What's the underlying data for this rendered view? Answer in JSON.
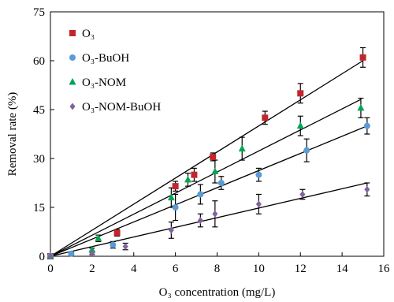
{
  "chart_data": {
    "type": "scatter",
    "title": "",
    "xlabel": "O₃ concentration (mg/L)",
    "ylabel": "Removal rate (%)",
    "xlim": [
      0,
      16
    ],
    "ylim": [
      0,
      75
    ],
    "x_ticks": [
      0,
      2,
      4,
      6,
      8,
      10,
      12,
      14,
      16
    ],
    "y_ticks": [
      0,
      15,
      30,
      45,
      60,
      75
    ],
    "x_tick_labels": [
      "0",
      "2",
      "4",
      "6",
      "8",
      "10",
      "12",
      "14",
      "16"
    ],
    "y_tick_labels": [
      "0",
      "15",
      "30",
      "45",
      "60",
      "75"
    ],
    "grid": false,
    "legend_position": "top-left",
    "trendlines": "linear fit through origin for each series",
    "series": [
      {
        "name": "O₃",
        "marker": "square",
        "color": "#c0272d",
        "points": [
          {
            "x": 0.0,
            "y": 0.0,
            "err": 0
          },
          {
            "x": 3.2,
            "y": 7.2,
            "err": 1.0
          },
          {
            "x": 6.0,
            "y": 21.5,
            "err": 1.5
          },
          {
            "x": 6.9,
            "y": 25.0,
            "err": 2.0
          },
          {
            "x": 7.8,
            "y": 30.5,
            "err": 1.2
          },
          {
            "x": 10.3,
            "y": 42.5,
            "err": 2.0
          },
          {
            "x": 12.0,
            "y": 50.0,
            "err": 3.0
          },
          {
            "x": 15.0,
            "y": 61.0,
            "err": 3.0
          }
        ],
        "fit_slope": 4.0
      },
      {
        "name": "O₃-BuOH",
        "marker": "circle",
        "color": "#5b9bd5",
        "points": [
          {
            "x": 0.0,
            "y": 0.0,
            "err": 0
          },
          {
            "x": 1.0,
            "y": 0.8,
            "err": 0.5
          },
          {
            "x": 3.0,
            "y": 3.5,
            "err": 1.0
          },
          {
            "x": 6.0,
            "y": 15.0,
            "err": 4.0
          },
          {
            "x": 7.2,
            "y": 19.0,
            "err": 3.0
          },
          {
            "x": 8.2,
            "y": 22.5,
            "err": 2.0
          },
          {
            "x": 10.0,
            "y": 25.0,
            "err": 2.0
          },
          {
            "x": 12.3,
            "y": 32.5,
            "err": 3.5
          },
          {
            "x": 15.2,
            "y": 40.0,
            "err": 2.5
          }
        ],
        "fit_slope": 2.63
      },
      {
        "name": "O₃-NOM",
        "marker": "triangle",
        "color": "#00a651",
        "points": [
          {
            "x": 0.0,
            "y": 0.0,
            "err": 0
          },
          {
            "x": 2.0,
            "y": 2.0,
            "err": 0.5
          },
          {
            "x": 2.3,
            "y": 5.5,
            "err": 1.0
          },
          {
            "x": 5.8,
            "y": 18.0,
            "err": 3.0
          },
          {
            "x": 6.6,
            "y": 23.5,
            "err": 2.0
          },
          {
            "x": 7.9,
            "y": 26.0,
            "err": 3.5
          },
          {
            "x": 9.2,
            "y": 33.0,
            "err": 3.5
          },
          {
            "x": 12.0,
            "y": 40.0,
            "err": 3.0
          },
          {
            "x": 14.9,
            "y": 45.5,
            "err": 3.0
          }
        ],
        "fit_slope": 3.23
      },
      {
        "name": "O₃-NOM-BuOH",
        "marker": "diamond",
        "color": "#7e649e",
        "points": [
          {
            "x": 0.0,
            "y": 0.0,
            "err": 0
          },
          {
            "x": 2.0,
            "y": 1.0,
            "err": 0.5
          },
          {
            "x": 3.6,
            "y": 3.0,
            "err": 1.0
          },
          {
            "x": 5.8,
            "y": 8.0,
            "err": 2.5
          },
          {
            "x": 7.2,
            "y": 11.0,
            "err": 2.0
          },
          {
            "x": 7.9,
            "y": 13.0,
            "err": 4.0
          },
          {
            "x": 10.0,
            "y": 16.0,
            "err": 3.0
          },
          {
            "x": 12.1,
            "y": 19.0,
            "err": 1.5
          },
          {
            "x": 15.2,
            "y": 20.5,
            "err": 2.0
          }
        ],
        "fit_slope": 1.48
      }
    ]
  }
}
